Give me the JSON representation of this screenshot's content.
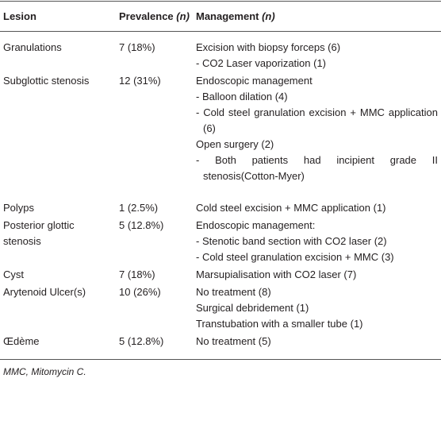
{
  "table": {
    "header": [
      {
        "text": "Lesion"
      },
      {
        "text": "Prevalence",
        "italic": "(n)"
      },
      {
        "text": "Management",
        "italic": "(n)"
      }
    ],
    "rows": [
      {
        "lesion": "Granulations",
        "prevalence": "7 (18%)",
        "management": [
          "Excision with biopsy forceps (6)",
          "- CO2 Laser vaporization (1)"
        ]
      },
      {
        "lesion": "Subglottic stenosis",
        "prevalence": "12 (31%)",
        "management": [
          "Endoscopic management",
          "- Balloon dilation (4)",
          "- Cold steel granulation excision + MMC application (6)",
          "Open surgery (2)",
          "- Both patients had incipient grade II stenosis(Cotton-Myer)"
        ]
      },
      {
        "lesion": "Polyps",
        "prevalence": "1 (2.5%)",
        "management": [
          "Cold steel excision + MMC application (1)"
        ]
      },
      {
        "lesion": "Posterior glottic stenosis",
        "prevalence": "5 (12.8%)",
        "management": [
          "Endoscopic management:",
          "- Stenotic band section with CO2 laser (2)",
          "- Cold steel granulation excision + MMC (3)"
        ]
      },
      {
        "lesion": "Cyst",
        "prevalence": "7 (18%)",
        "management": [
          "Marsupialisation with CO2 laser (7)"
        ]
      },
      {
        "lesion": "Arytenoid Ulcer(s)",
        "prevalence": "10 (26%)",
        "management": [
          "No treatment (8)",
          "Surgical debridement (1)",
          "Transtubation with a smaller tube (1)"
        ]
      },
      {
        "lesion": "Œdème",
        "prevalence": "5 (12.8%)",
        "management": [
          "No treatment (5)"
        ]
      }
    ],
    "footnote": "MMC, Mitomycin C."
  }
}
